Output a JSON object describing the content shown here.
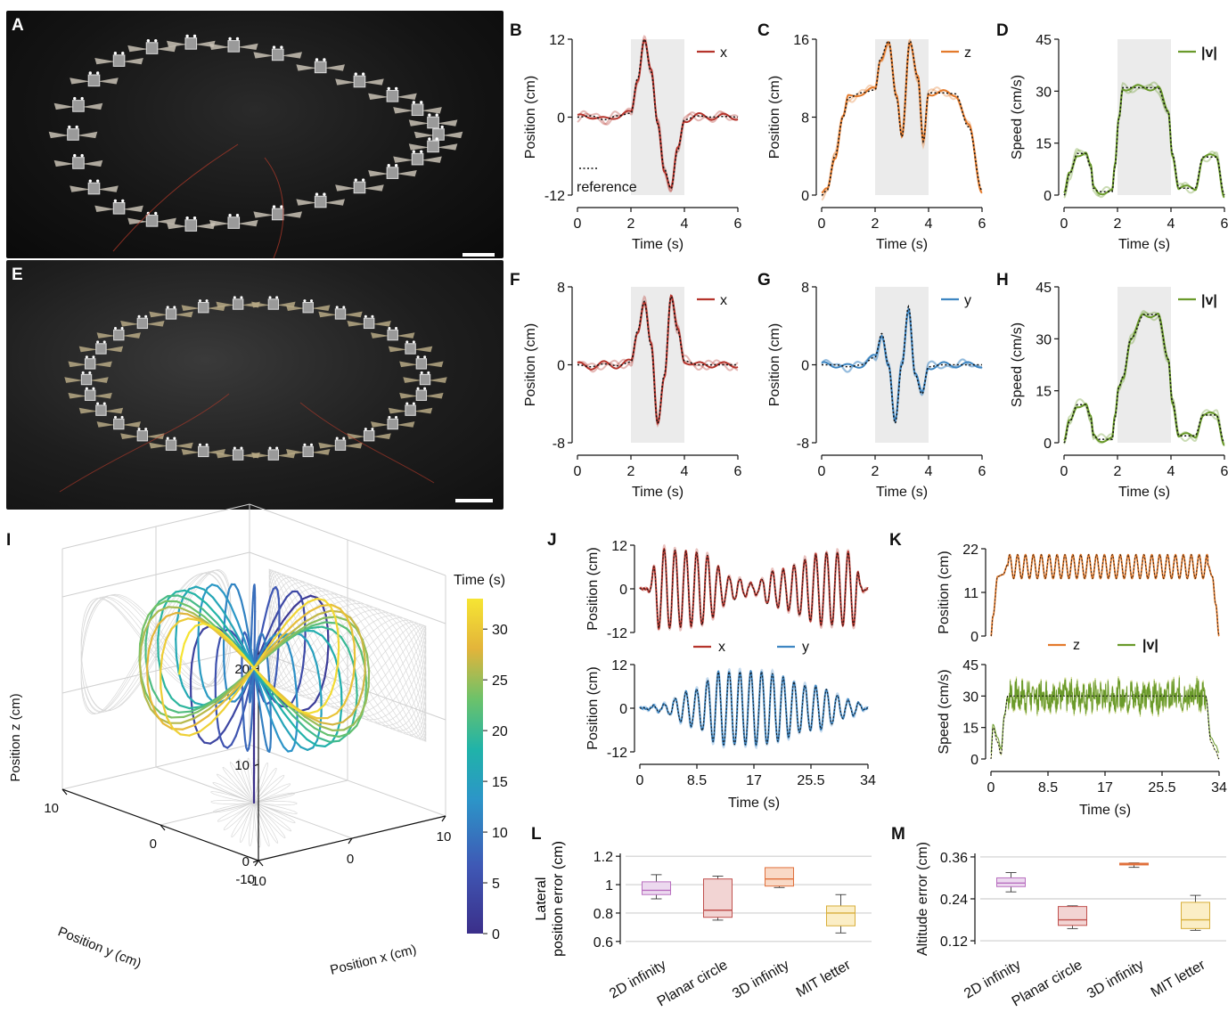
{
  "panel_letters": [
    "A",
    "B",
    "C",
    "D",
    "E",
    "F",
    "G",
    "H",
    "I",
    "J",
    "K",
    "L",
    "M"
  ],
  "reference_label": "reference",
  "colors": {
    "x": "#b5342c",
    "z": "#e37a2c",
    "v": "#6a9a2b",
    "y": "#3e86c2",
    "shade": "#ebebeb",
    "ref": "#111111"
  },
  "chart_data": [
    {
      "id": "B",
      "type": "line",
      "xlabel": "Time (s)",
      "ylabel": "Position (cm)",
      "xticks": [
        "0",
        "2",
        "4",
        "6"
      ],
      "yticks": [
        "-12",
        "0",
        "12"
      ],
      "xlim": [
        0,
        6
      ],
      "ylim": [
        -12,
        12
      ],
      "shade": [
        2,
        4
      ],
      "legend": "x",
      "series": [
        {
          "name": "x",
          "x": [
            0,
            0.5,
            1,
            1.5,
            2,
            2.25,
            2.5,
            2.75,
            3,
            3.25,
            3.5,
            3.75,
            4,
            4.5,
            5,
            5.5,
            6
          ],
          "y": [
            0,
            0.2,
            -0.4,
            0.2,
            0.6,
            6,
            12,
            7,
            -1,
            -8,
            -11,
            -5,
            -0.4,
            0.2,
            0,
            0.1,
            0
          ]
        }
      ]
    },
    {
      "id": "C",
      "type": "line",
      "xlabel": "Time (s)",
      "ylabel": "Position (cm)",
      "xticks": [
        "0",
        "2",
        "4",
        "6"
      ],
      "yticks": [
        "0",
        "8",
        "16"
      ],
      "xlim": [
        0,
        6
      ],
      "ylim": [
        0,
        16
      ],
      "shade": [
        2,
        4
      ],
      "legend": "z",
      "series": [
        {
          "name": "z",
          "x": [
            0,
            0.2,
            0.5,
            0.8,
            1,
            1.5,
            2,
            2.2,
            2.5,
            2.8,
            3,
            3.3,
            3.6,
            3.8,
            4,
            4.5,
            5,
            5.5,
            6
          ],
          "y": [
            0,
            0.5,
            4,
            8,
            10,
            10.5,
            10.8,
            14,
            15.8,
            10,
            6,
            15.8,
            12,
            5.5,
            10.5,
            10.5,
            10.4,
            7,
            0.5
          ]
        }
      ]
    },
    {
      "id": "D",
      "type": "line",
      "xlabel": "Time (s)",
      "ylabel": "Speed (cm/s)",
      "xticks": [
        "0",
        "2",
        "4",
        "6"
      ],
      "yticks": [
        "0",
        "15",
        "30",
        "45"
      ],
      "xlim": [
        0,
        6
      ],
      "ylim": [
        0,
        45
      ],
      "shade": [
        2,
        4
      ],
      "legend": "|v|",
      "series": [
        {
          "name": "|v|",
          "x": [
            0,
            0.2,
            0.5,
            0.8,
            1,
            1.1,
            1.3,
            1.6,
            1.8,
            1.9,
            2.05,
            2.2,
            2.5,
            3,
            3.5,
            3.9,
            4.05,
            4.3,
            4.6,
            4.9,
            5.2,
            5.7,
            6
          ],
          "y": [
            0,
            6,
            12,
            12,
            8,
            2,
            1,
            1,
            1,
            8,
            22,
            31,
            31,
            31,
            31,
            24,
            12,
            2,
            2,
            2,
            11,
            11,
            0
          ]
        }
      ]
    },
    {
      "id": "F",
      "type": "line",
      "xlabel": "Time (s)",
      "ylabel": "Position (cm)",
      "xticks": [
        "0",
        "2",
        "4",
        "6"
      ],
      "yticks": [
        "-8",
        "0",
        "8"
      ],
      "xlim": [
        0,
        6
      ],
      "ylim": [
        -8,
        8
      ],
      "shade": [
        2,
        4
      ],
      "legend": "x",
      "series": [
        {
          "name": "x",
          "x": [
            0,
            0.5,
            1,
            1.5,
            2,
            2.25,
            2.5,
            2.75,
            3,
            3.25,
            3.5,
            3.75,
            4,
            4.5,
            5,
            5.5,
            6
          ],
          "y": [
            0,
            -0.2,
            0.1,
            -0.1,
            0.3,
            3.5,
            6.5,
            2,
            -6,
            -1,
            7,
            3.5,
            0.4,
            0,
            0,
            0,
            0
          ]
        }
      ]
    },
    {
      "id": "G",
      "type": "line",
      "xlabel": "Time (s)",
      "ylabel": "Position (cm)",
      "xticks": [
        "0",
        "2",
        "4",
        "6"
      ],
      "yticks": [
        "-8",
        "0",
        "8"
      ],
      "xlim": [
        0,
        6
      ],
      "ylim": [
        -8,
        8
      ],
      "shade": [
        2,
        4
      ],
      "legend": "y",
      "series": [
        {
          "name": "y",
          "x": [
            0,
            0.5,
            1,
            1.5,
            2,
            2.25,
            2.5,
            2.75,
            3,
            3.25,
            3.5,
            3.75,
            4,
            4.5,
            5,
            5.5,
            6
          ],
          "y": [
            0,
            0,
            -0.2,
            0,
            0.8,
            3.2,
            0,
            -6,
            0,
            6,
            -1,
            -3,
            -0.2,
            0,
            0,
            0,
            0
          ]
        }
      ]
    },
    {
      "id": "H",
      "type": "line",
      "xlabel": "Time (s)",
      "ylabel": "Speed (cm/s)",
      "xticks": [
        "0",
        "2",
        "4",
        "6"
      ],
      "yticks": [
        "0",
        "15",
        "30",
        "45"
      ],
      "xlim": [
        0,
        6
      ],
      "ylim": [
        0,
        45
      ],
      "shade": [
        2,
        4
      ],
      "legend": "|v|",
      "series": [
        {
          "name": "|v|",
          "x": [
            0,
            0.2,
            0.5,
            0.8,
            1,
            1.1,
            1.3,
            1.6,
            1.8,
            1.9,
            2.05,
            2.2,
            2.5,
            3,
            3.5,
            3.9,
            4.05,
            4.3,
            4.6,
            4.9,
            5.2,
            5.7,
            6
          ],
          "y": [
            0,
            6,
            11,
            11,
            7,
            2,
            1,
            1,
            1,
            7,
            16,
            19,
            30,
            37,
            37,
            24,
            12,
            2,
            2,
            2,
            8,
            8,
            0
          ]
        }
      ]
    },
    {
      "id": "J_top",
      "type": "line",
      "xlabel": "",
      "ylabel": "Position (cm)",
      "xticks": [],
      "yticks": [
        "-12",
        "0",
        "12"
      ],
      "xlim": [
        0,
        34
      ],
      "ylim": [
        -12,
        12
      ],
      "legend": "x",
      "series": [
        {
          "name": "x",
          "amplitude_envelope": [
            [
              0,
              0
            ],
            [
              1,
              0
            ],
            [
              3,
              11
            ],
            [
              9,
              10
            ],
            [
              14,
              3
            ],
            [
              17,
              1.5
            ],
            [
              20,
              5
            ],
            [
              28,
              10
            ],
            [
              32,
              10
            ],
            [
              33,
              1
            ],
            [
              34,
              0
            ]
          ],
          "frequency_hz": 0.62
        }
      ]
    },
    {
      "id": "J_bottom",
      "type": "line",
      "xlabel": "Time (s)",
      "ylabel": "Position (cm)",
      "xticks": [
        "0",
        "8.5",
        "17",
        "25.5",
        "34"
      ],
      "yticks": [
        "-12",
        "0",
        "12"
      ],
      "xlim": [
        0,
        34
      ],
      "ylim": [
        -12,
        12
      ],
      "legend": "y",
      "series": [
        {
          "name": "y",
          "amplitude_envelope": [
            [
              0,
              0
            ],
            [
              3,
              1
            ],
            [
              8,
              5
            ],
            [
              12,
              10
            ],
            [
              18,
              10
            ],
            [
              26,
              6
            ],
            [
              32,
              2
            ],
            [
              34,
              0
            ]
          ],
          "frequency_hz": 0.62
        }
      ]
    },
    {
      "id": "K_top",
      "type": "line",
      "xlabel": "",
      "ylabel": "Position (cm)",
      "xticks": [],
      "yticks": [
        "0",
        "11",
        "22"
      ],
      "xlim": [
        0,
        34
      ],
      "ylim": [
        0,
        22
      ],
      "legend": "z",
      "series": [
        {
          "name": "z",
          "x": [
            0,
            0.3,
            1,
            1.8,
            2.5,
            32.3,
            33,
            33.5,
            34
          ],
          "y": [
            0,
            5,
            15,
            15.5,
            18,
            18,
            15,
            8,
            0
          ],
          "oscillation": {
            "from": 2.5,
            "to": 32.3,
            "mean": 17.5,
            "amplitude": 3,
            "frequency_hz": 0.85
          }
        }
      ]
    },
    {
      "id": "K_bottom",
      "type": "line",
      "xlabel": "Time (s)",
      "ylabel": "Speed (cm/s)",
      "xticks": [
        "0",
        "8.5",
        "17",
        "25.5",
        "34"
      ],
      "yticks": [
        "0",
        "15",
        "30",
        "45"
      ],
      "xlim": [
        0,
        34
      ],
      "ylim": [
        0,
        45
      ],
      "legend": "|v|",
      "series": [
        {
          "name": "|v|",
          "x": [
            0,
            0.3,
            1,
            1.5,
            2,
            2.5,
            32,
            32.8,
            33.5,
            34
          ],
          "y": [
            0,
            15,
            8,
            2,
            20,
            30,
            30,
            8,
            4,
            0
          ],
          "noise": {
            "from": 2.5,
            "to": 32,
            "mean": 30,
            "amplitude": 7
          }
        }
      ]
    },
    {
      "id": "L",
      "type": "box",
      "ylabel": "Lateral position error (cm)",
      "yticks": [
        "0.6",
        "0.8",
        "1",
        "1.2"
      ],
      "ylim": [
        0.58,
        1.22
      ],
      "categories": [
        "2D infinity",
        "Planar circle",
        "3D infinity",
        "MIT letter"
      ],
      "boxes": [
        {
          "min": 0.9,
          "q1": 0.93,
          "median": 0.96,
          "q3": 1.02,
          "max": 1.07,
          "color": "#b96fc0",
          "fill": "#ecd9ef"
        },
        {
          "min": 0.75,
          "q1": 0.77,
          "median": 0.82,
          "q3": 1.04,
          "max": 1.06,
          "color": "#c0504d",
          "fill": "#f2d4d3"
        },
        {
          "min": 0.98,
          "q1": 0.99,
          "median": 1.04,
          "q3": 1.12,
          "max": 1.12,
          "color": "#e0703c",
          "fill": "#f9d9c6"
        },
        {
          "min": 0.66,
          "q1": 0.71,
          "median": 0.8,
          "q3": 0.85,
          "max": 0.93,
          "color": "#d8ae3a",
          "fill": "#fbeec6"
        }
      ]
    },
    {
      "id": "M",
      "type": "box",
      "ylabel": "Altitude error (cm)",
      "yticks": [
        "0.12",
        "0.24",
        "0.36"
      ],
      "ylim": [
        0.11,
        0.37
      ],
      "categories": [
        "2D infinity",
        "Planar circle",
        "3D infinity",
        "MIT letter"
      ],
      "boxes": [
        {
          "min": 0.26,
          "q1": 0.275,
          "median": 0.285,
          "q3": 0.3,
          "max": 0.315,
          "color": "#b96fc0",
          "fill": "#ecd9ef"
        },
        {
          "min": 0.155,
          "q1": 0.164,
          "median": 0.18,
          "q3": 0.218,
          "max": 0.22,
          "color": "#c0504d",
          "fill": "#f2d4d3"
        },
        {
          "min": 0.33,
          "q1": 0.337,
          "median": 0.34,
          "q3": 0.342,
          "max": 0.343,
          "color": "#e0703c",
          "fill": "#f9d9c6"
        },
        {
          "min": 0.15,
          "q1": 0.155,
          "median": 0.18,
          "q3": 0.23,
          "max": 0.25,
          "color": "#d8ae3a",
          "fill": "#fbeec6"
        }
      ]
    },
    {
      "id": "I",
      "type": "line",
      "xlabel": "Position x (cm)",
      "ylabel_y": "Position y (cm)",
      "ylabel_z": "Position z (cm)",
      "xticks": [
        "-10",
        "0",
        "10"
      ],
      "yticks": [
        "-10",
        "0",
        "10"
      ],
      "zticks": [
        "0",
        "10",
        "20"
      ],
      "colorbar": {
        "label": "Time (s)",
        "ticks": [
          "0",
          "5",
          "10",
          "15",
          "20",
          "25",
          "30"
        ],
        "range": [
          0,
          33
        ]
      }
    }
  ]
}
